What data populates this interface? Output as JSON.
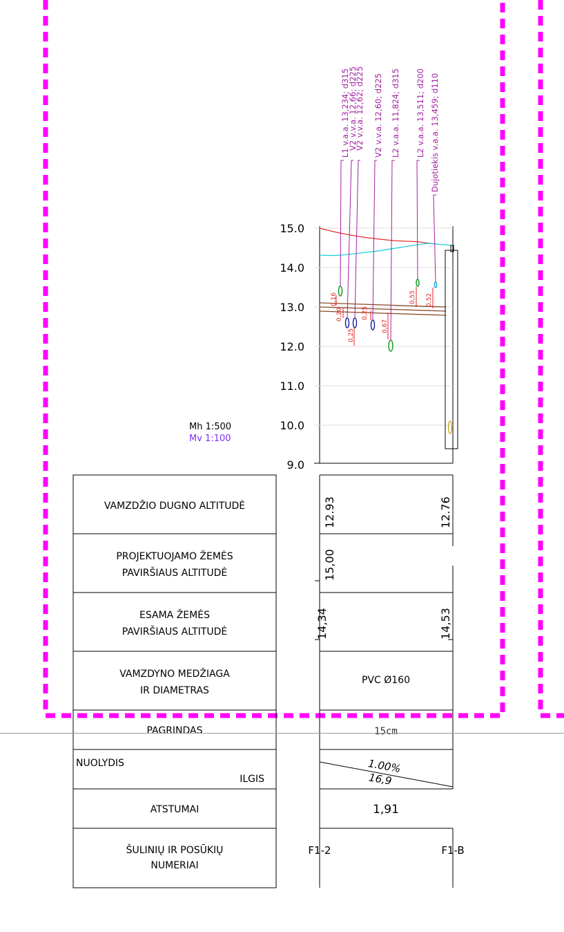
{
  "scales": {
    "horizontal": "Mh 1:500",
    "vertical": "Mv 1:100",
    "vertical_color": "#7b2cff"
  },
  "axis": {
    "ticks": [
      "15.0",
      "14.0",
      "13.0",
      "12.0",
      "11.0",
      "10.0",
      "9.0"
    ],
    "min": 9.0,
    "max": 15.0
  },
  "utility_labels": [
    {
      "text": "L1 v.a.a. 13,234; d315"
    },
    {
      "text": "V2 v.v.a. 12,66; d225"
    },
    {
      "text": "V2 v.v.a. 12,62; d225"
    },
    {
      "text": "V2 v.v.a. 12,60; d225"
    },
    {
      "text": "L2 v.a.a. 11,824; d315"
    },
    {
      "text": "L2 v.a.a. 13,511; d200"
    },
    {
      "text": "Dujotiekis v.a.a. 13,459; d110"
    }
  ],
  "clearances": [
    "0,16",
    "0,20",
    "0,25",
    "0,25",
    "0,67",
    "0,55",
    "0,52"
  ],
  "table": {
    "rows": [
      {
        "label": "VAMZDŽIO DUGNO ALTITUDĖ",
        "left": "12.93",
        "right": "12.76"
      },
      {
        "label_1": "PROJEKTUOJAMO ŽEMĖS",
        "label_2": "PAVIRŠIAUS ALTITUDĖ",
        "left": "15,00",
        "right": ""
      },
      {
        "label_1": "ESAMA ŽEMĖS",
        "label_2": "PAVIRŠIAUS ALTITUDĖ",
        "left": "14,34",
        "right": "14,53"
      },
      {
        "label_1": "VAMZDYNO MEDŽIAGA",
        "label_2": "IR DIAMETRAS",
        "value": "PVC Ø160"
      },
      {
        "label": "PAGRINDAS",
        "value": "15cm"
      },
      {
        "label_1": "NUOLYDIS",
        "label_2": "ILGIS",
        "slope": "1.00%",
        "length": "16,9"
      },
      {
        "label": "ATSTUMAI",
        "value": "1,91"
      },
      {
        "label_1": "ŠULINIŲ IR POSŪKIŲ",
        "label_2": "NUMERIAI",
        "left": "F1-2",
        "right": "F1-B"
      }
    ]
  },
  "colors": {
    "frame": "#ff00ff",
    "utility_label": "#a020a0",
    "design_ground": "#e03030",
    "existing_ground": "#22d0d8",
    "pipe": "#8b4a2b",
    "clearance": "#e02020"
  }
}
